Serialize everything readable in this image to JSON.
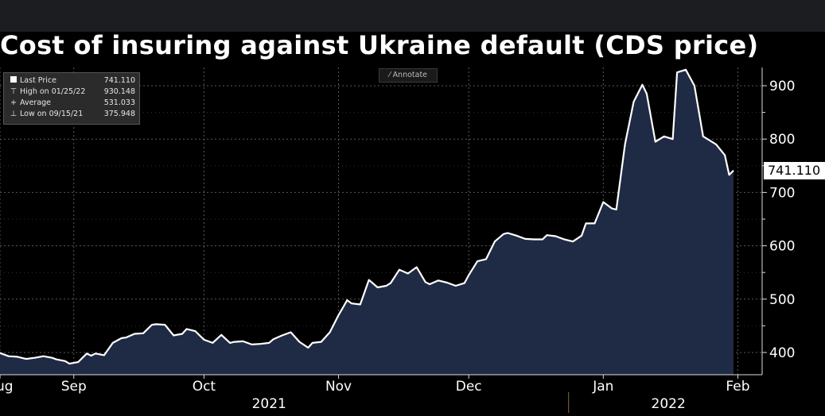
{
  "title": "Cost of insuring against Ukraine default (CDS price)",
  "annotate_label": "Annotate",
  "annotate_icon": "pencil-icon",
  "legend": {
    "last": {
      "label": "Last Price",
      "value": "741.110"
    },
    "high": {
      "label": "High on 01/25/22",
      "value": "930.148"
    },
    "average": {
      "label": "Average",
      "value": "531.033"
    },
    "low": {
      "label": "Low on 09/15/21",
      "value": "375.948"
    }
  },
  "last_price_badge": "741.110",
  "colors": {
    "background": "#000000",
    "line": "#ffffff",
    "area": "#1f2a45",
    "grid": "#5a5a5a"
  },
  "chart_data": {
    "type": "area",
    "title": "Cost of insuring against Ukraine default (CDS price)",
    "xlabel": "",
    "ylabel": "",
    "ylim": [
      355,
      935
    ],
    "y_ticks": [
      400,
      500,
      600,
      700,
      800,
      900
    ],
    "x_range": [
      0,
      184
    ],
    "month_ticks": [
      {
        "label": "Aug",
        "day": 0
      },
      {
        "label": "Sep",
        "day": 17
      },
      {
        "label": "Oct",
        "day": 47
      },
      {
        "label": "Nov",
        "day": 78
      },
      {
        "label": "Dec",
        "day": 108
      },
      {
        "label": "Jan",
        "day": 139
      },
      {
        "label": "Feb",
        "day": 170
      }
    ],
    "year_labels": [
      {
        "label": "2021",
        "day": 62
      },
      {
        "label": "2022",
        "day": 154
      }
    ],
    "year_divider_day": 131,
    "series": [
      {
        "name": "Last Price",
        "days": [
          0,
          2,
          4,
          6,
          8,
          10,
          12,
          13,
          15,
          16,
          18,
          20,
          21,
          22,
          24,
          26,
          28,
          29,
          31,
          33,
          35,
          36,
          38,
          40,
          42,
          43,
          45,
          47,
          49,
          51,
          53,
          54,
          56,
          58,
          60,
          62,
          63,
          65,
          67,
          69,
          71,
          72,
          74,
          76,
          78,
          80,
          81,
          83,
          85,
          87,
          89,
          90,
          92,
          94,
          96,
          98,
          99,
          101,
          103,
          105,
          107,
          108,
          110,
          112,
          114,
          116,
          117,
          119,
          121,
          123,
          125,
          126,
          128,
          130,
          132,
          134,
          135,
          137,
          139,
          141,
          142,
          144,
          146,
          148,
          149,
          151,
          153,
          155,
          156,
          158,
          160,
          162,
          163,
          165,
          167,
          168,
          169
        ],
        "values": [
          399,
          393,
          392,
          388,
          390,
          393,
          390,
          387,
          384,
          379,
          382,
          398,
          394,
          398,
          395,
          418,
          427,
          428,
          435,
          436,
          452,
          453,
          452,
          432,
          435,
          444,
          440,
          424,
          418,
          433,
          418,
          420,
          421,
          415,
          416,
          418,
          425,
          432,
          438,
          420,
          409,
          418,
          420,
          438,
          470,
          498,
          492,
          490,
          536,
          522,
          525,
          530,
          555,
          548,
          560,
          532,
          528,
          535,
          531,
          525,
          530,
          545,
          571,
          575,
          608,
          622,
          624,
          619,
          613,
          612,
          612,
          620,
          618,
          612,
          608,
          619,
          642,
          642,
          682,
          670,
          668,
          790,
          870,
          902,
          885,
          795,
          805,
          800,
          925,
          930,
          900,
          805,
          800,
          790,
          770,
          733,
          741
        ]
      }
    ]
  }
}
